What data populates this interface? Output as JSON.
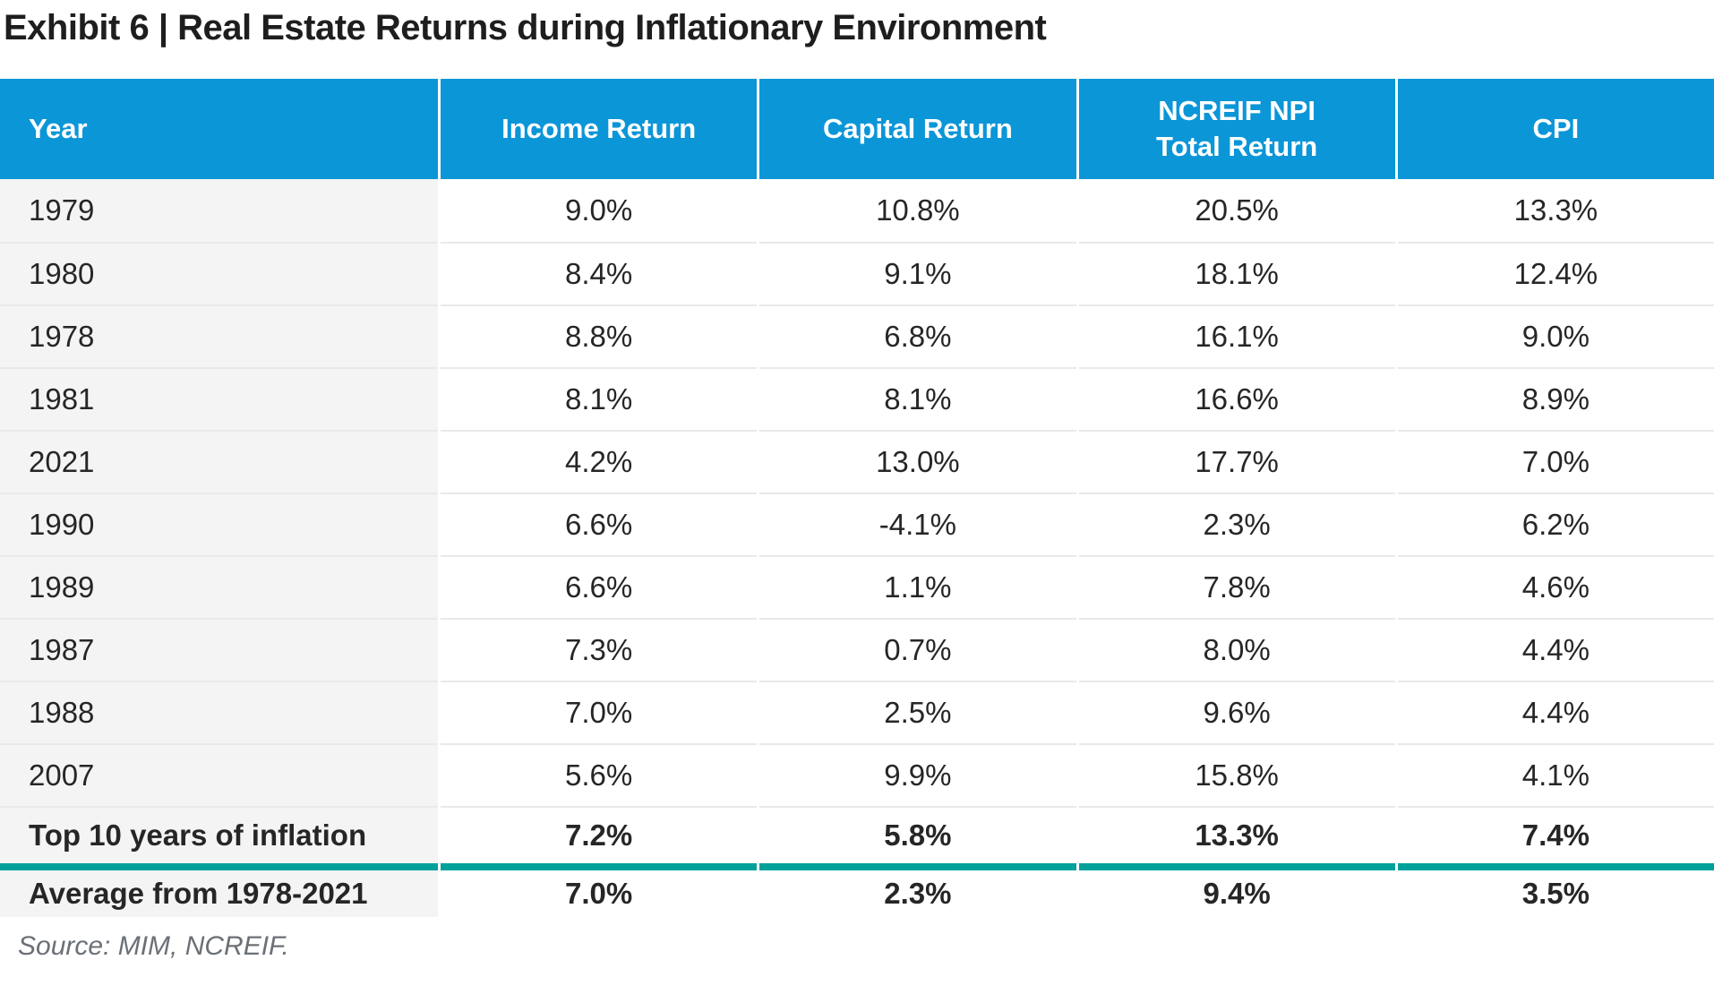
{
  "page": {
    "title": "Exhibit 6 | Real Estate Returns during Inflationary Environment",
    "source_note": "Source: MIM, NCREIF."
  },
  "colors": {
    "header_blue": "#0b96d8",
    "summary_divider_teal": "#00a19b",
    "year_column_gray": "#f4f4f4",
    "row_divider_gray": "#e9e9e9",
    "title_black": "#1e1e1e",
    "source_gray": "#6b7076"
  },
  "chart_data": {
    "type": "table",
    "title": "Exhibit 6 | Real Estate Returns during Inflationary Environment",
    "columns": [
      {
        "lines": [
          "Year"
        ]
      },
      {
        "lines": [
          "Income Return"
        ]
      },
      {
        "lines": [
          "Capital Return"
        ]
      },
      {
        "lines": [
          "NCREIF NPI",
          "Total Return"
        ]
      },
      {
        "lines": [
          "CPI"
        ]
      }
    ],
    "rows": [
      {
        "label": "1979",
        "values": [
          "9.0%",
          "10.8%",
          "20.5%",
          "13.3%"
        ]
      },
      {
        "label": "1980",
        "values": [
          "8.4%",
          "9.1%",
          "18.1%",
          "12.4%"
        ]
      },
      {
        "label": "1978",
        "values": [
          "8.8%",
          "6.8%",
          "16.1%",
          "9.0%"
        ]
      },
      {
        "label": "1981",
        "values": [
          "8.1%",
          "8.1%",
          "16.6%",
          "8.9%"
        ]
      },
      {
        "label": "2021",
        "values": [
          "4.2%",
          "13.0%",
          "17.7%",
          "7.0%"
        ]
      },
      {
        "label": "1990",
        "values": [
          "6.6%",
          "-4.1%",
          "2.3%",
          "6.2%"
        ]
      },
      {
        "label": "1989",
        "values": [
          "6.6%",
          "1.1%",
          "7.8%",
          "4.6%"
        ]
      },
      {
        "label": "1987",
        "values": [
          "7.3%",
          "0.7%",
          "8.0%",
          "4.4%"
        ]
      },
      {
        "label": "1988",
        "values": [
          "7.0%",
          "2.5%",
          "9.6%",
          "4.4%"
        ]
      },
      {
        "label": "2007",
        "values": [
          "5.6%",
          "9.9%",
          "15.8%",
          "4.1%"
        ]
      }
    ],
    "summary_rows": [
      {
        "label": "Top 10 years of inflation",
        "values": [
          "7.2%",
          "5.8%",
          "13.3%",
          "7.4%"
        ]
      },
      {
        "label": "Average from 1978-2021",
        "values": [
          "7.0%",
          "2.3%",
          "9.4%",
          "3.5%"
        ]
      }
    ],
    "source": "Source: MIM, NCREIF."
  }
}
